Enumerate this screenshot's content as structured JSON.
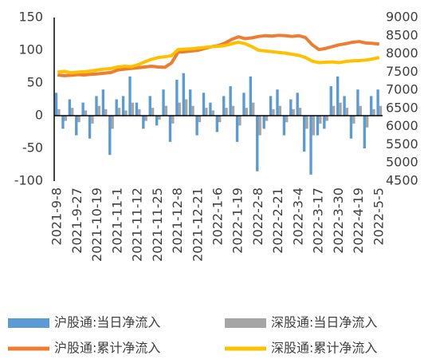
{
  "chart_data": {
    "type": "bar-line",
    "categories": [
      "2021-9-8",
      null,
      null,
      "2021-9-27",
      null,
      null,
      "2021-10-19",
      null,
      null,
      "2021-11-1",
      null,
      null,
      "2021-11-12",
      null,
      null,
      "2021-11-25",
      null,
      null,
      "2021-12-8",
      null,
      null,
      "2021-12-21",
      null,
      null,
      "2022-1-6",
      null,
      null,
      "2022-1-19",
      null,
      null,
      "2022-2-8",
      null,
      null,
      "2022-2-21",
      null,
      null,
      "2022-3-4",
      null,
      null,
      "2022-3-17",
      null,
      null,
      "2022-3-30",
      null,
      null,
      "2022-4-19",
      null,
      null,
      "2022-5-5"
    ],
    "series": [
      {
        "name": "沪股通:当日净流入",
        "type": "bar",
        "color": "#5b9bd5",
        "values": [
          35,
          -20,
          25,
          -30,
          20,
          -35,
          30,
          40,
          -60,
          25,
          30,
          60,
          20,
          -20,
          30,
          -15,
          40,
          -40,
          55,
          65,
          40,
          -30,
          35,
          20,
          -25,
          30,
          45,
          -40,
          35,
          60,
          -85,
          -20,
          30,
          40,
          -30,
          25,
          35,
          -55,
          -90,
          -30,
          -20,
          45,
          60,
          30,
          -35,
          40,
          -50,
          30,
          40
        ]
      },
      {
        "name": "深股通:当日净流入",
        "type": "bar",
        "color": "#a5a5a5",
        "values": [
          10,
          -8,
          12,
          -10,
          8,
          -12,
          15,
          10,
          -20,
          12,
          8,
          20,
          10,
          -8,
          12,
          -6,
          15,
          -12,
          20,
          25,
          15,
          -10,
          12,
          8,
          -10,
          12,
          15,
          -15,
          12,
          20,
          -30,
          -8,
          10,
          15,
          -10,
          10,
          12,
          -20,
          -30,
          -12,
          -8,
          15,
          20,
          12,
          -12,
          15,
          -18,
          10,
          15
        ]
      },
      {
        "name": "沪股通:累计净流入",
        "type": "line",
        "axis": "y2",
        "color": "#ed7d31",
        "values": [
          7420,
          7400,
          7410,
          7430,
          7420,
          7440,
          7450,
          7470,
          7490,
          7560,
          7580,
          7600,
          7620,
          7640,
          7660,
          7640,
          7630,
          7750,
          8050,
          8060,
          8080,
          8100,
          8150,
          8200,
          8230,
          8300,
          8400,
          8470,
          8420,
          8440,
          8480,
          8500,
          8490,
          8510,
          8500,
          8480,
          8500,
          8450,
          8250,
          8120,
          8150,
          8200,
          8250,
          8280,
          8320,
          8340,
          8300,
          8290,
          8270
        ]
      },
      {
        "name": "深股通:累计净流入",
        "type": "line",
        "axis": "y2",
        "color": "#ffc000",
        "values": [
          7500,
          7520,
          7480,
          7500,
          7510,
          7530,
          7560,
          7580,
          7600,
          7640,
          7660,
          7650,
          7700,
          7780,
          7850,
          7900,
          7920,
          7950,
          8120,
          8130,
          8140,
          8160,
          8180,
          8200,
          8210,
          8230,
          8280,
          8320,
          8280,
          8200,
          8100,
          8080,
          8060,
          8040,
          8020,
          7990,
          7960,
          7900,
          7800,
          7760,
          7770,
          7780,
          7760,
          7790,
          7810,
          7815,
          7830,
          7860,
          7900
        ]
      }
    ],
    "ylim": [
      -100,
      150
    ],
    "yticks": [
      -100,
      -50,
      0,
      50,
      100,
      150
    ],
    "y2lim": [
      4500,
      9000
    ],
    "y2ticks": [
      4500,
      5000,
      5500,
      6000,
      6500,
      7000,
      7500,
      8000,
      8500,
      9000
    ]
  }
}
